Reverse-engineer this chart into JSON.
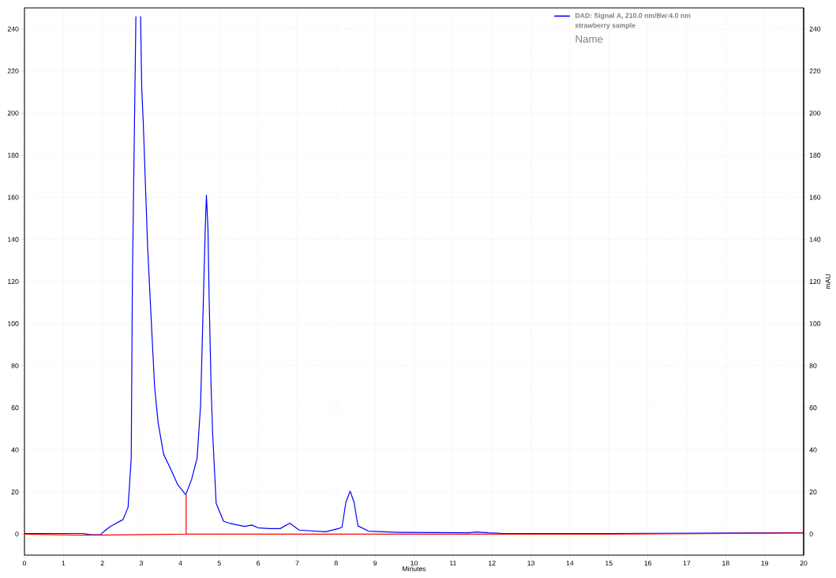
{
  "chart_data": {
    "type": "line",
    "xlabel": "Minutes",
    "y2label": "mAU",
    "xlim": [
      0,
      20
    ],
    "xticks": [
      0,
      1,
      2,
      3,
      4,
      5,
      6,
      7,
      8,
      9,
      10,
      11,
      12,
      13,
      14,
      15,
      16,
      17,
      18,
      19,
      20
    ],
    "ylim": [
      -10,
      250
    ],
    "yticks": [
      0,
      20,
      40,
      60,
      80,
      100,
      120,
      140,
      160,
      180,
      200,
      220,
      240
    ],
    "y2lim": [
      -10,
      250
    ],
    "y2ticks": [
      0,
      20,
      40,
      60,
      80,
      100,
      120,
      140,
      160,
      180,
      200,
      220,
      240
    ],
    "grid": true,
    "legend": "top right",
    "marker": "none",
    "line_style": "solid",
    "annotations": [
      "strawberry sample",
      "Name"
    ],
    "series": [
      {
        "name": "DAD: Signal A, 210.0 nm/Bw:4.0 nm",
        "color": "#0000ff",
        "x": [
          0,
          0.5,
          1.0,
          1.5,
          1.7,
          1.95,
          2.08,
          2.21,
          2.53,
          2.66,
          2.74,
          2.77,
          2.83,
          2.86,
          2.92,
          2.98,
          3.01,
          3.05,
          3.16,
          3.25,
          3.34,
          3.43,
          3.57,
          3.75,
          3.93,
          4.14,
          4.29,
          4.43,
          4.52,
          4.58,
          4.64,
          4.67,
          4.71,
          4.74,
          4.79,
          4.83,
          4.92,
          5.11,
          5.29,
          5.65,
          5.83,
          6.0,
          6.29,
          6.56,
          6.81,
          7.05,
          7.73,
          8.09,
          8.15,
          8.25,
          8.36,
          8.46,
          8.56,
          8.83,
          9.6,
          11.4,
          11.6,
          11.9,
          12.3,
          15,
          20
        ],
        "values": [
          0.3,
          0.3,
          0.3,
          0.3,
          -0.3,
          -0.3,
          1.9,
          3.7,
          6.9,
          12.8,
          36,
          120,
          204,
          246,
          null,
          246,
          212,
          195,
          137,
          103,
          70,
          53,
          38,
          31,
          23.6,
          18.7,
          26,
          36,
          61,
          103,
          145,
          161,
          145,
          112,
          70,
          48,
          14.6,
          6.1,
          5,
          3.6,
          4.3,
          3,
          2.6,
          2.6,
          5.2,
          1.9,
          1.1,
          2.8,
          3.3,
          15.1,
          20.4,
          15.1,
          3.9,
          1.4,
          0.8,
          0.6,
          1,
          0.6,
          0.3,
          0.3,
          0.6
        ]
      },
      {
        "color": "#ff0000",
        "x": [
          0,
          1.35,
          1.95,
          4.15,
          4.15,
          4.15,
          9.8,
          15,
          20
        ],
        "values": [
          0,
          -0.5,
          -0.5,
          0,
          18.7,
          0,
          0,
          0,
          0.5
        ]
      }
    ]
  }
}
